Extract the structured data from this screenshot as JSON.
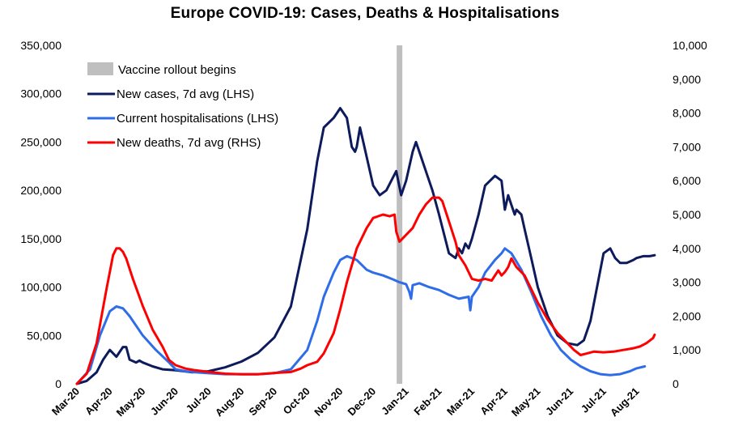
{
  "chart_data": {
    "type": "line",
    "title": "Europe COVID-19: Cases, Deaths & Hospitalisations",
    "xlabel": "",
    "ylabel_left": "",
    "ylabel_right": "",
    "ylim_left": [
      0,
      350000
    ],
    "ylim_right": [
      0,
      10000
    ],
    "yticks_left": [
      "0",
      "50,000",
      "100,000",
      "150,000",
      "200,000",
      "250,000",
      "300,000",
      "350,000"
    ],
    "yticks_right": [
      "0",
      "1,000",
      "2,000",
      "3,000",
      "4,000",
      "5,000",
      "6,000",
      "7,000",
      "8,000",
      "9,000",
      "10,000"
    ],
    "xticks": [
      "Mar-20",
      "Apr-20",
      "May-20",
      "Jun-20",
      "Jul-20",
      "Aug-20",
      "Sep-20",
      "Oct-20",
      "Nov-20",
      "Dec-20",
      "Jan-21",
      "Feb-21",
      "Mar-21",
      "Apr-21",
      "May-21",
      "Jun-21",
      "Jul-21",
      "Aug-21"
    ],
    "grid": false,
    "legend_position": "top-left",
    "vaccine_rollout": {
      "label": "Vaccine rollout begins",
      "x": 9.8,
      "color": "#bfbfbf"
    },
    "series": [
      {
        "name": "New cases, 7d avg (LHS)",
        "axis": "left",
        "color": "#0d1a5c",
        "x": [
          0,
          0.3,
          0.6,
          0.8,
          1,
          1.2,
          1.4,
          1.5,
          1.6,
          1.8,
          1.9,
          2.0,
          2.3,
          2.6,
          3,
          3.5,
          4,
          4.5,
          5,
          5.5,
          6,
          6.5,
          7,
          7.3,
          7.5,
          7.8,
          8.0,
          8.2,
          8.35,
          8.45,
          8.5,
          8.6,
          8.7,
          9.0,
          9.2,
          9.4,
          9.7,
          9.85,
          10.0,
          10.2,
          10.3,
          10.4,
          10.6,
          10.8,
          11.0,
          11.3,
          11.5,
          11.6,
          11.7,
          11.8,
          11.9,
          12.0,
          12.2,
          12.4,
          12.7,
          12.9,
          13.0,
          13.1,
          13.2,
          13.3,
          13.35,
          13.5,
          13.6,
          13.8,
          14.0,
          14.3,
          14.6,
          14.9,
          15.2,
          15.4,
          15.6,
          15.8,
          16.0,
          16.2,
          16.35,
          16.5,
          16.7,
          16.9,
          17.0,
          17.2,
          17.4,
          17.55
        ],
        "values": [
          0,
          3000,
          12000,
          25000,
          35000,
          28000,
          38000,
          38000,
          25000,
          22000,
          24000,
          22000,
          18000,
          15000,
          14000,
          12000,
          13000,
          17000,
          23000,
          32000,
          48000,
          80000,
          160000,
          230000,
          265000,
          275000,
          285000,
          275000,
          245000,
          240000,
          245000,
          265000,
          250000,
          205000,
          195000,
          200000,
          220000,
          195000,
          210000,
          240000,
          250000,
          240000,
          220000,
          200000,
          175000,
          135000,
          130000,
          140000,
          135000,
          145000,
          140000,
          150000,
          175000,
          205000,
          215000,
          210000,
          180000,
          195000,
          185000,
          175000,
          180000,
          175000,
          160000,
          130000,
          100000,
          70000,
          50000,
          42000,
          40000,
          45000,
          65000,
          100000,
          135000,
          140000,
          130000,
          125000,
          125000,
          128000,
          130000,
          132000,
          132000,
          133000
        ]
      },
      {
        "name": "Current hospitalisations (LHS)",
        "axis": "left",
        "color": "#2f6de8",
        "x": [
          0,
          0.4,
          0.7,
          1.0,
          1.2,
          1.4,
          1.6,
          2.0,
          2.4,
          2.8,
          3.0,
          3.3,
          3.6,
          4,
          4.5,
          5,
          5.5,
          6,
          6.5,
          7,
          7.3,
          7.5,
          7.8,
          8.0,
          8.2,
          8.5,
          8.8,
          9.0,
          9.3,
          9.6,
          9.8,
          10.0,
          10.1,
          10.15,
          10.2,
          10.4,
          10.7,
          11.0,
          11.3,
          11.6,
          11.9,
          11.95,
          12.0,
          12.2,
          12.4,
          12.7,
          12.9,
          13.0,
          13.2,
          13.5,
          13.8,
          14.1,
          14.4,
          14.7,
          15.0,
          15.3,
          15.6,
          15.9,
          16.2,
          16.5,
          16.8,
          17.0,
          17.25
        ],
        "values": [
          0,
          15000,
          50000,
          75000,
          80000,
          78000,
          70000,
          50000,
          35000,
          22000,
          15000,
          13000,
          12000,
          11000,
          10000,
          10000,
          10000,
          11000,
          15000,
          35000,
          65000,
          90000,
          115000,
          128000,
          132000,
          128000,
          118000,
          115000,
          112000,
          108000,
          105000,
          103000,
          95000,
          88000,
          102000,
          104000,
          100000,
          97000,
          92000,
          88000,
          90000,
          76000,
          90000,
          100000,
          115000,
          128000,
          135000,
          140000,
          135000,
          118000,
          95000,
          70000,
          50000,
          35000,
          25000,
          18000,
          13000,
          10000,
          9000,
          10000,
          13000,
          16000,
          18000
        ]
      },
      {
        "name": "New deaths, 7d avg (RHS)",
        "axis": "right",
        "color": "#ff0000",
        "x": [
          0,
          0.3,
          0.6,
          0.9,
          1.1,
          1.2,
          1.3,
          1.4,
          1.5,
          1.7,
          2.0,
          2.3,
          2.6,
          2.8,
          3.0,
          3.3,
          3.6,
          4,
          4.5,
          5,
          5.5,
          6,
          6.5,
          6.8,
          7.0,
          7.3,
          7.5,
          7.8,
          8.0,
          8.2,
          8.5,
          8.8,
          9.0,
          9.3,
          9.5,
          9.65,
          9.7,
          9.8,
          10.0,
          10.2,
          10.4,
          10.6,
          10.8,
          11.0,
          11.1,
          11.3,
          11.5,
          11.6,
          11.8,
          12.0,
          12.2,
          12.4,
          12.6,
          12.8,
          12.9,
          13.0,
          13.1,
          13.2,
          13.35,
          13.6,
          13.8,
          14.0,
          14.3,
          14.6,
          14.9,
          15.1,
          15.3,
          15.5,
          15.7,
          16.0,
          16.3,
          16.6,
          16.9,
          17.1,
          17.3,
          17.5,
          17.55
        ],
        "values": [
          0,
          300,
          1200,
          2800,
          3800,
          4000,
          4000,
          3900,
          3700,
          3100,
          2300,
          1600,
          1100,
          700,
          550,
          450,
          400,
          350,
          300,
          280,
          280,
          320,
          350,
          450,
          550,
          650,
          900,
          1500,
          2200,
          3000,
          4000,
          4600,
          4900,
          5000,
          4950,
          5000,
          4500,
          4200,
          4400,
          4600,
          5000,
          5300,
          5500,
          5500,
          5400,
          4800,
          4200,
          3800,
          3500,
          3100,
          3050,
          3100,
          3050,
          3350,
          3200,
          3300,
          3450,
          3700,
          3450,
          3200,
          2800,
          2400,
          1900,
          1500,
          1200,
          1000,
          850,
          900,
          950,
          930,
          950,
          1000,
          1050,
          1100,
          1200,
          1350,
          1450
        ]
      }
    ]
  }
}
